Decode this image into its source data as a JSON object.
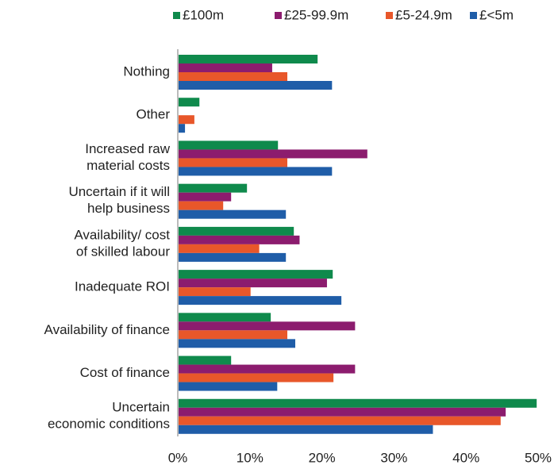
{
  "chart_data": {
    "type": "bar",
    "orientation": "horizontal",
    "categories": [
      "Nothing",
      "Other",
      "Increased raw\nmaterial costs",
      "Uncertain if it will\nhelp business",
      "Availability/ cost\nof skilled labour",
      "Inadequate ROI",
      "Availability of finance",
      "Cost of finance",
      "Uncertain\neconomic conditions"
    ],
    "series": [
      {
        "name": "£100m",
        "color": "#0f8a4c",
        "values": [
          19.4,
          3.0,
          13.9,
          9.6,
          16.1,
          21.5,
          12.9,
          7.4,
          49.8
        ]
      },
      {
        "name": "£25-99.9m",
        "color": "#8c1c6e",
        "values": [
          13.1,
          0,
          26.3,
          7.4,
          16.9,
          20.7,
          24.6,
          24.6,
          45.5
        ]
      },
      {
        "name": "£5-24.9m",
        "color": "#e8572a",
        "values": [
          15.2,
          2.3,
          15.2,
          6.3,
          11.3,
          10.1,
          15.2,
          21.6,
          44.8
        ]
      },
      {
        "name": "£<5m",
        "color": "#1f5da8",
        "values": [
          21.4,
          1.0,
          21.4,
          15.0,
          15.0,
          22.7,
          16.3,
          13.8,
          35.4
        ]
      }
    ],
    "xlim": [
      0,
      50
    ],
    "xticks": [
      {
        "value": 0,
        "label": "0%"
      },
      {
        "value": 10,
        "label": "10%"
      },
      {
        "value": 20,
        "label": "20%"
      },
      {
        "value": 30,
        "label": "30%"
      },
      {
        "value": 40,
        "label": "40%"
      },
      {
        "value": 50,
        "label": "50%"
      }
    ],
    "legend": "top",
    "grid": false
  }
}
